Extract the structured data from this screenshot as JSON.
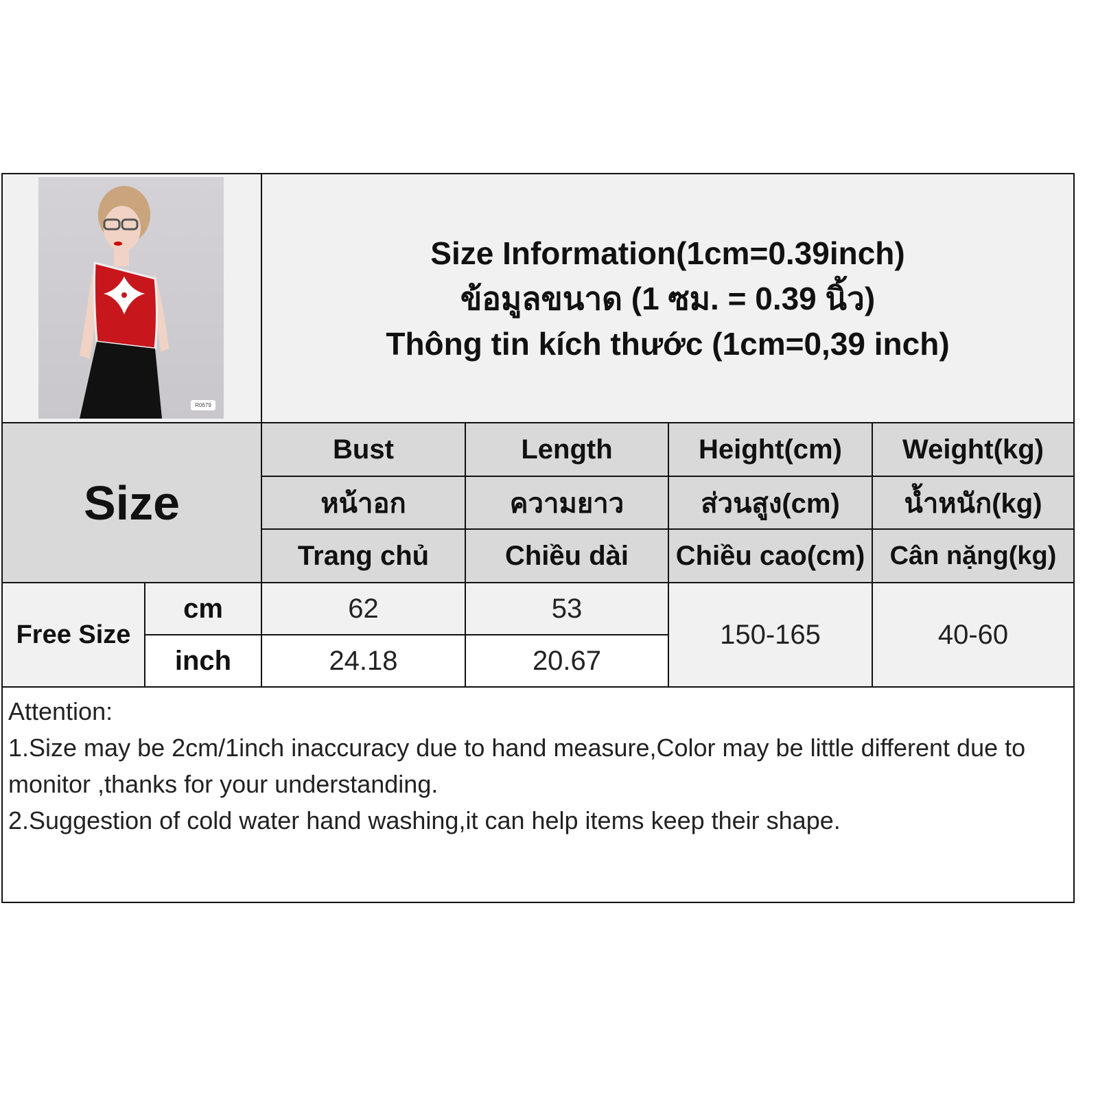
{
  "title": {
    "line_en": "Size Information(1cm=0.39inch)",
    "line_th": "ข้อมูลขนาด (1 ซม. = 0.39 นิ้ว)",
    "line_vi": "Thông tin kích thước (1cm=0,39 inch)"
  },
  "product_photo": {
    "description_icon": "model-photo",
    "tag": "R0679"
  },
  "size_label": "Size",
  "columns": [
    {
      "en": "Bust",
      "th": "หน้าอก",
      "vi": "Trang chủ"
    },
    {
      "en": "Length",
      "th": "ความยาว",
      "vi": "Chiều dài"
    },
    {
      "en": "Height(cm)",
      "th": "ส่วนสูง(cm)",
      "vi": "Chiều cao(cm)"
    },
    {
      "en": "Weight(kg)",
      "th": "น้ำหนัก(kg)",
      "vi": "Cân nặng(kg)"
    }
  ],
  "rows": {
    "size_name": "Free Size",
    "cm": {
      "unit": "cm",
      "bust": "62",
      "length": "53"
    },
    "inch": {
      "unit": "inch",
      "bust": "24.18",
      "length": "20.67"
    },
    "height": "150-165",
    "weight": "40-60"
  },
  "attention": {
    "heading": "Attention:",
    "note1": "1.Size may be 2cm/1inch inaccuracy due to hand measure,Color may be little different due to monitor ,thanks for your understanding.",
    "note2": "2.Suggestion of cold water hand washing,it can help items keep their shape."
  },
  "colors": {
    "header_grey": "#d9d9d9",
    "light_grey": "#f1f1f1",
    "shirt_red": "#c8161d"
  }
}
